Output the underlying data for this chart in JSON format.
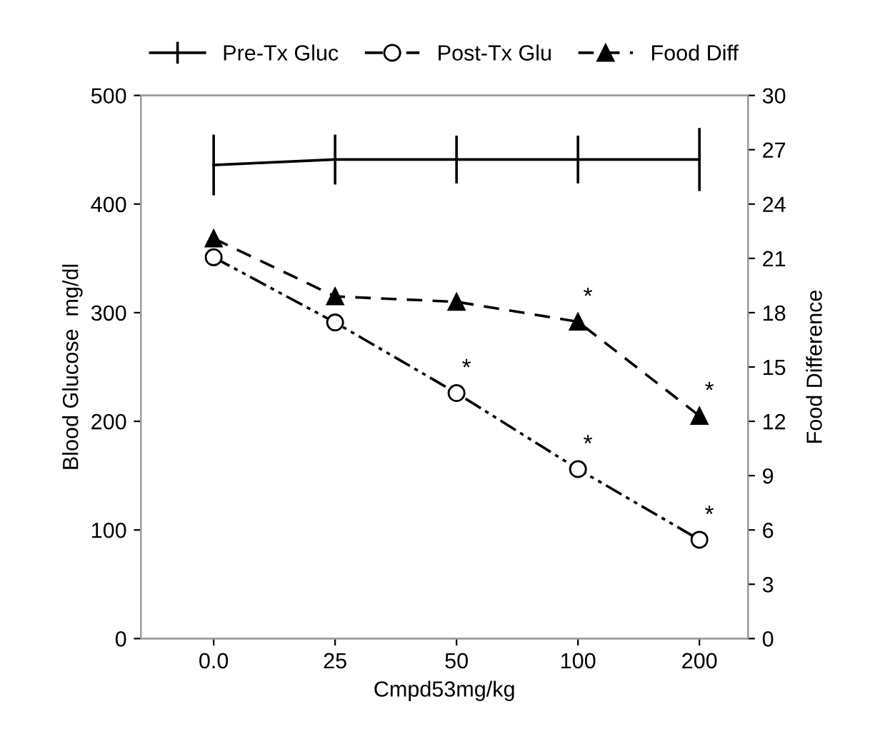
{
  "chart_data": {
    "type": "line",
    "xlabel": "Cmpd53mg/kg",
    "ylabel": "Blood Glucose  mg/dl",
    "y2label": "Food Difference",
    "categories": [
      "0.0",
      "25",
      "50",
      "100",
      "200"
    ],
    "series": [
      {
        "name": "Pre-Tx Gluc",
        "color": "#000000",
        "values": [
          436,
          441,
          441,
          441,
          441
        ],
        "errors": [
          28,
          23,
          22,
          22,
          29
        ],
        "marker": "none",
        "line_style": "solid"
      },
      {
        "name": "Post-Tx Glu",
        "color": "#000000",
        "values": [
          351,
          291,
          226,
          156,
          91
        ],
        "marker": "circle",
        "line_style": "dashdot"
      },
      {
        "name": "Food Diff",
        "color": "#000000",
        "values": [
          22.1,
          18.9,
          18.6,
          17.5,
          12.3
        ],
        "marker": "triangle",
        "line_style": "dashed",
        "axis": "y2"
      }
    ],
    "ylim": [
      0,
      500
    ],
    "yticks": [
      0,
      100,
      200,
      300,
      400,
      500
    ],
    "y2lim": [
      0,
      30
    ],
    "y2ticks": [
      0,
      3,
      6,
      9,
      12,
      15,
      18,
      21,
      24,
      27,
      30
    ],
    "annotations": [
      {
        "text": "*",
        "x": "50",
        "y": 226
      },
      {
        "text": "*",
        "x": "100",
        "y": 156
      },
      {
        "text": "*",
        "x": "200",
        "y": 91
      },
      {
        "text": "*",
        "x": "100",
        "y": 291.7
      },
      {
        "text": "*",
        "x": "200",
        "y": 205
      }
    ],
    "grid": false,
    "legend": "top"
  }
}
